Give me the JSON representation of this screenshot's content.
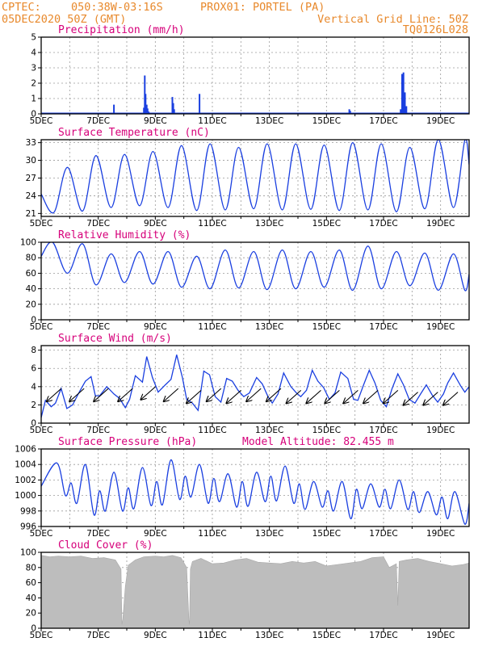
{
  "header": {
    "source": "CPTEC:",
    "location": "050:38W-03:16S",
    "station": "PROX01: PORTEL (PA)",
    "date": "05DEC2020 50Z (GMT)",
    "grid_note": "Vertical Grid Line: 50Z",
    "model_code": "TQ0126L028"
  },
  "colors": {
    "header": "#e8892c",
    "panel_title": "#d6007a",
    "line": "#1a3fe0",
    "bar": "#1a3fe0",
    "cloud_fill": "#bdbdbd",
    "wind_arrow": "#000000"
  },
  "chart_data": [
    {
      "id": "precip",
      "type": "bar",
      "title": "Precipitation (mm/h)",
      "ylim": [
        0,
        5
      ],
      "yticks": [
        0,
        1,
        2,
        3,
        4,
        5
      ],
      "xlim": [
        5,
        20
      ],
      "xticks": [
        "5DEC",
        "7DEC",
        "9DEC",
        "11DEC",
        "13DEC",
        "15DEC",
        "17DEC",
        "19DEC"
      ],
      "x_day": [
        7.55,
        8.6,
        8.63,
        8.66,
        8.7,
        8.73,
        8.77,
        9.6,
        9.63,
        9.66,
        10.55,
        15.8,
        15.83,
        17.6,
        17.65,
        17.7,
        17.75,
        17.8
      ],
      "values": [
        0.6,
        0.4,
        2.5,
        1.3,
        0.6,
        0.35,
        0.15,
        1.1,
        0.7,
        0.3,
        1.3,
        0.3,
        0.2,
        0.3,
        2.6,
        2.7,
        1.4,
        0.5
      ]
    },
    {
      "id": "temp",
      "type": "line",
      "title": "Surface Temperature (nC)",
      "ylim": [
        20.5,
        33.5
      ],
      "yticks": [
        21,
        24,
        27,
        30,
        33
      ],
      "xlim": [
        5,
        20
      ],
      "xticks": [
        "5DEC",
        "7DEC",
        "9DEC",
        "11DEC",
        "13DEC",
        "15DEC",
        "17DEC",
        "19DEC"
      ],
      "min_days": [
        5.45,
        6.45,
        7.45,
        8.45,
        9.45,
        10.45,
        11.45,
        12.45,
        13.45,
        14.45,
        15.45,
        16.45,
        17.45,
        18.45,
        19.45
      ],
      "min_values": [
        21.2,
        21.4,
        22.0,
        22.3,
        22.0,
        21.5,
        21.6,
        21.8,
        21.6,
        21.7,
        21.5,
        21.6,
        21.3,
        21.8,
        22.0
      ],
      "max_days": [
        5.92,
        6.92,
        7.92,
        8.92,
        9.92,
        10.92,
        11.92,
        12.92,
        13.92,
        14.92,
        15.92,
        16.92,
        17.92,
        18.92,
        19.85
      ],
      "max_values": [
        28.8,
        30.8,
        31.0,
        31.5,
        32.5,
        32.8,
        32.2,
        32.8,
        32.8,
        32.6,
        33.0,
        32.8,
        32.2,
        33.5,
        33.4
      ],
      "start_value": 24.3,
      "end_value": 29.3
    },
    {
      "id": "rh",
      "type": "line",
      "title": "Relative Humidity (%)",
      "ylim": [
        0,
        100
      ],
      "yticks": [
        0,
        20,
        40,
        60,
        80,
        100
      ],
      "xlim": [
        5,
        20
      ],
      "xticks": [
        "5DEC",
        "7DEC",
        "9DEC",
        "11DEC",
        "13DEC",
        "15DEC",
        "17DEC",
        "19DEC"
      ],
      "low_days": [
        5.92,
        6.92,
        7.92,
        8.92,
        9.92,
        10.92,
        11.92,
        12.92,
        13.92,
        14.92,
        15.92,
        16.92,
        17.92,
        18.92,
        19.85
      ],
      "low_values": [
        60,
        45,
        48,
        46,
        42,
        40,
        41,
        39,
        40,
        42,
        38,
        40,
        44,
        38,
        38
      ],
      "high_days": [
        5.4,
        6.45,
        7.45,
        8.45,
        9.45,
        10.45,
        11.45,
        12.45,
        13.45,
        14.45,
        15.45,
        16.45,
        17.45,
        18.45,
        19.45
      ],
      "high_values": [
        100,
        98,
        85,
        88,
        88,
        82,
        90,
        88,
        90,
        88,
        90,
        95,
        88,
        86,
        85
      ],
      "start_value": 82,
      "end_value": 59
    },
    {
      "id": "wind",
      "type": "line",
      "title": "Surface Wind (m/s)",
      "ylim": [
        0,
        8.5
      ],
      "yticks": [
        0,
        2,
        4,
        6,
        8
      ],
      "xlim": [
        5,
        20
      ],
      "xticks": [
        "5DEC",
        "7DEC",
        "9DEC",
        "11DEC",
        "13DEC",
        "15DEC",
        "17DEC",
        "19DEC"
      ],
      "x_day": [
        5.0,
        5.15,
        5.35,
        5.5,
        5.7,
        5.9,
        6.1,
        6.35,
        6.55,
        6.75,
        6.9,
        7.05,
        7.3,
        7.55,
        7.75,
        7.95,
        8.1,
        8.3,
        8.55,
        8.7,
        8.9,
        9.1,
        9.35,
        9.55,
        9.75,
        9.95,
        10.1,
        10.3,
        10.5,
        10.7,
        10.9,
        11.1,
        11.3,
        11.5,
        11.7,
        11.9,
        12.1,
        12.3,
        12.55,
        12.75,
        12.95,
        13.1,
        13.3,
        13.5,
        13.75,
        13.95,
        14.1,
        14.3,
        14.5,
        14.7,
        14.9,
        15.1,
        15.3,
        15.5,
        15.75,
        15.95,
        16.1,
        16.3,
        16.5,
        16.7,
        16.9,
        17.1,
        17.3,
        17.5,
        17.7,
        17.9,
        18.1,
        18.3,
        18.5,
        18.7,
        18.9,
        19.1,
        19.25,
        19.45,
        19.7,
        19.85,
        20.0
      ],
      "values": [
        0.6,
        2.5,
        1.8,
        2.2,
        3.8,
        1.6,
        2.0,
        3.5,
        4.6,
        5.1,
        3.0,
        3.0,
        4.0,
        3.2,
        2.7,
        1.7,
        2.6,
        5.2,
        4.5,
        7.3,
        5.0,
        3.4,
        4.2,
        4.8,
        7.5,
        5.0,
        2.6,
        2.2,
        1.4,
        5.7,
        5.3,
        2.9,
        2.3,
        4.9,
        4.6,
        3.6,
        2.9,
        3.3,
        5.0,
        4.3,
        2.9,
        2.2,
        3.2,
        5.5,
        4.0,
        3.3,
        2.9,
        3.6,
        5.8,
        4.6,
        3.9,
        2.6,
        3.3,
        5.6,
        4.9,
        2.6,
        2.5,
        4.2,
        5.8,
        4.4,
        2.5,
        1.8,
        3.8,
        5.4,
        4.2,
        2.6,
        2.2,
        3.2,
        4.2,
        3.1,
        2.3,
        3.2,
        4.4,
        5.5,
        4.1,
        3.4,
        4.0
      ],
      "arrows_x_day": [
        5.45,
        6.25,
        7.1,
        7.95,
        8.75,
        9.55,
        10.35,
        11.05,
        11.75,
        12.45,
        13.15,
        13.85,
        14.55,
        15.2,
        15.85,
        16.55,
        17.25,
        17.95,
        18.65,
        19.35
      ],
      "arrows_y": [
        3.0,
        3.0,
        3.0,
        3.0,
        3.2,
        3.0,
        2.8,
        3.0,
        2.8,
        3.0,
        3.0,
        2.8,
        2.8,
        2.8,
        2.8,
        2.8,
        2.8,
        2.6,
        2.6,
        2.6
      ]
    },
    {
      "id": "pressure",
      "type": "line",
      "title": "Surface Pressure (hPa)",
      "annotation": "Model Altitude: 82.455 m",
      "ylim": [
        996,
        1006
      ],
      "yticks": [
        996,
        998,
        1000,
        1002,
        1004,
        1006
      ],
      "xlim": [
        5,
        20
      ],
      "xticks": [
        "5DEC",
        "7DEC",
        "9DEC",
        "11DEC",
        "13DEC",
        "15DEC",
        "17DEC",
        "19DEC"
      ],
      "max1_days": [
        5.55,
        6.55,
        7.55,
        8.55,
        9.55,
        10.55,
        11.55,
        12.55,
        13.55,
        14.55,
        15.55,
        16.55,
        17.55,
        18.55,
        19.5
      ],
      "max1_values": [
        1004.2,
        1004.0,
        1003.0,
        1003.6,
        1004.6,
        1004.0,
        1002.8,
        1003.0,
        1003.8,
        1001.8,
        1001.8,
        1001.5,
        1002.0,
        1000.5,
        1000.5
      ],
      "min1_days": [
        5.85,
        6.85,
        7.85,
        8.85,
        9.85,
        10.85,
        11.85,
        12.85,
        13.85,
        14.85,
        15.85,
        16.85,
        17.85,
        18.85,
        19.85
      ],
      "min1_values": [
        1000.0,
        997.5,
        998.0,
        998.7,
        999.5,
        999.0,
        998.5,
        999.2,
        999.0,
        998.5,
        997.0,
        998.5,
        998.2,
        997.5,
        996.3
      ],
      "max2_days": [
        6.05,
        7.05,
        8.05,
        9.05,
        10.05,
        11.05,
        12.05,
        13.05,
        14.05,
        15.05,
        16.05,
        17.05,
        18.05,
        19.05
      ],
      "max2_values": [
        1001.6,
        1000.6,
        1001.0,
        1001.8,
        1002.5,
        1002.2,
        1001.8,
        1002.5,
        1001.5,
        1000.6,
        1000.8,
        1000.8,
        1000.5,
        999.8
      ],
      "min2_days": [
        6.25,
        7.25,
        8.25,
        9.25,
        10.25,
        11.25,
        12.25,
        13.25,
        14.25,
        15.25,
        16.25,
        17.25,
        18.25,
        19.25
      ],
      "min2_values": [
        999.0,
        998.0,
        998.3,
        998.8,
        999.8,
        999.2,
        998.6,
        999.3,
        998.2,
        998.0,
        998.3,
        998.3,
        997.8,
        997.0
      ],
      "start_value": 1001.2,
      "end_value": 999.0
    },
    {
      "id": "cloud",
      "type": "area",
      "title": "Cloud Cover (%)",
      "ylim": [
        0,
        100
      ],
      "yticks": [
        0,
        20,
        40,
        60,
        80,
        100
      ],
      "xlim": [
        5,
        20
      ],
      "xticks": [
        "5DEC",
        "7DEC",
        "9DEC",
        "11DEC",
        "13DEC",
        "15DEC",
        "17DEC",
        "19DEC"
      ],
      "x_day": [
        5.0,
        5.3,
        5.6,
        6.0,
        6.4,
        6.8,
        7.2,
        7.6,
        7.8,
        7.83,
        7.86,
        7.95,
        8.05,
        8.3,
        8.6,
        9.0,
        9.3,
        9.6,
        9.9,
        10.1,
        10.18,
        10.2,
        10.23,
        10.3,
        10.6,
        11.0,
        11.4,
        11.8,
        12.2,
        12.6,
        13.0,
        13.4,
        13.8,
        14.2,
        14.6,
        15.0,
        15.4,
        15.8,
        16.2,
        16.6,
        17.0,
        17.2,
        17.45,
        17.5,
        17.55,
        17.8,
        18.2,
        18.6,
        19.0,
        19.4,
        19.8,
        20.0
      ],
      "values": [
        96,
        94,
        95,
        94,
        95,
        92,
        93,
        90,
        78,
        5,
        12,
        55,
        83,
        90,
        94,
        95,
        94,
        96,
        93,
        80,
        10,
        5,
        78,
        88,
        92,
        85,
        86,
        90,
        92,
        87,
        86,
        85,
        88,
        86,
        88,
        82,
        84,
        86,
        88,
        93,
        94,
        80,
        85,
        30,
        88,
        90,
        92,
        88,
        85,
        82,
        84,
        86
      ]
    }
  ]
}
